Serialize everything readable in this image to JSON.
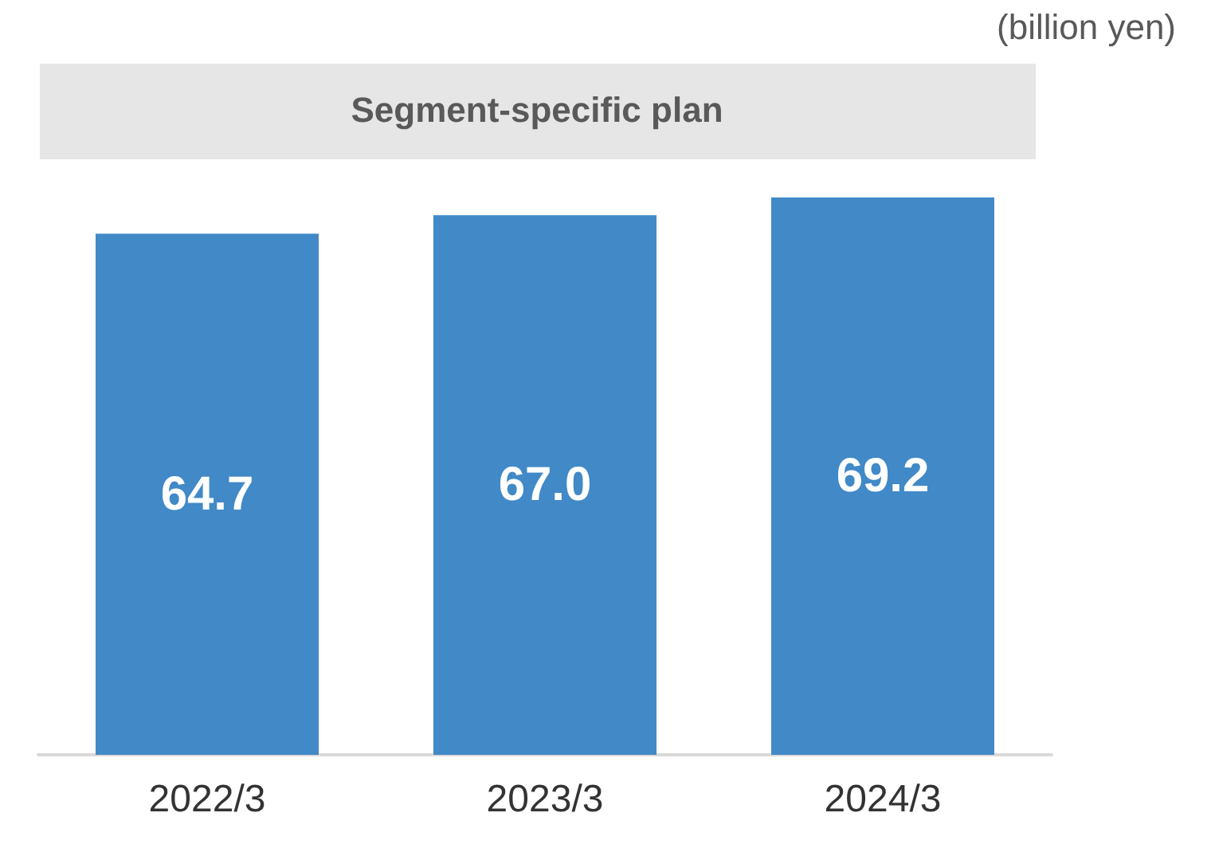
{
  "chart_data": {
    "type": "bar",
    "title": "Segment-specific plan",
    "annotations": [
      "(billion yen)"
    ],
    "categories": [
      "2022/3",
      "2023/3",
      "2024/3"
    ],
    "values": [
      64.7,
      67.0,
      69.2
    ],
    "value_labels": [
      "64.7",
      "67.0",
      "69.2"
    ],
    "color": "#4189c7"
  }
}
